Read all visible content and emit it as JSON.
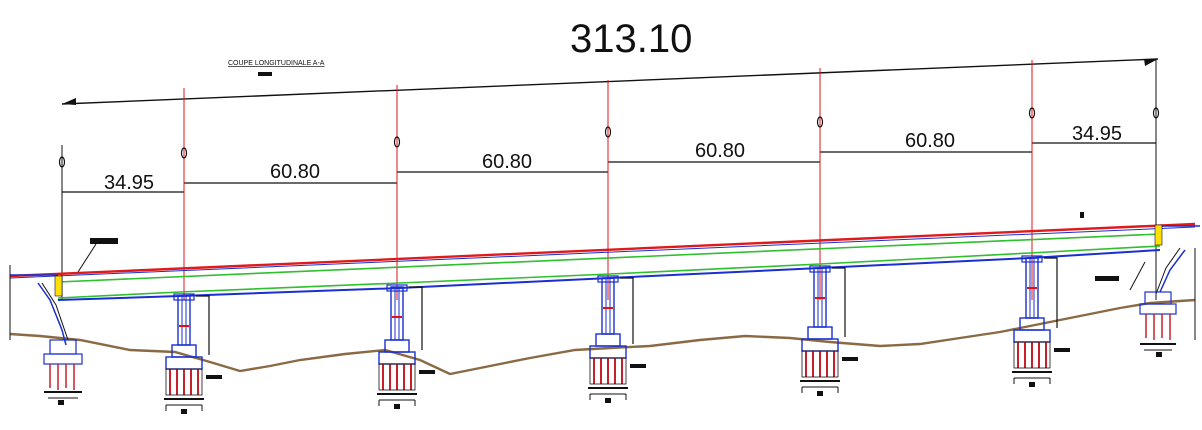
{
  "drawing": {
    "title": "COUPE LONGITUDINALE A-A",
    "total_length": "313.10",
    "spans": [
      "34.95",
      "60.80",
      "60.80",
      "60.80",
      "60.80",
      "34.95"
    ]
  },
  "colors": {
    "dimension_line": "#111111",
    "axis_line": "#e0101a",
    "deck_top": "#e01a1a",
    "deck_slab": "#2fbf2f",
    "deck_bottom": "#1a2fd0",
    "ground_profile": "#8a6a45",
    "pier": "#1a2fd0",
    "foundation_red": "#c8202a",
    "bearing_yellow": "#ffe000"
  }
}
